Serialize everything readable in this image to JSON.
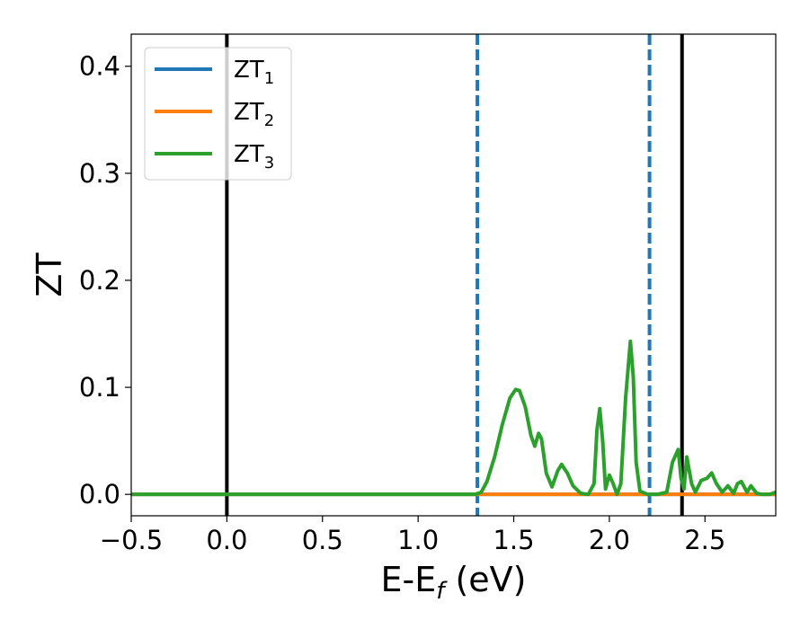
{
  "chart_data": {
    "type": "line",
    "title": "",
    "xlabel": "E-E",
    "xlabel_subscript": "f",
    "xlabel_unit": " (eV)",
    "ylabel": "ZT",
    "xlim": [
      -0.5,
      2.87
    ],
    "ylim": [
      -0.02,
      0.43
    ],
    "x_ticks": [
      -0.5,
      0.0,
      0.5,
      1.0,
      1.5,
      2.0,
      2.5
    ],
    "x_tick_labels": [
      "−0.5",
      "0.0",
      "0.5",
      "1.0",
      "1.5",
      "2.0",
      "2.5"
    ],
    "y_ticks": [
      0.0,
      0.1,
      0.2,
      0.3,
      0.4
    ],
    "y_tick_labels": [
      "0.0",
      "0.1",
      "0.2",
      "0.3",
      "0.4"
    ],
    "grid": false,
    "legend_position": "top-left",
    "vlines": [
      {
        "x": 0.0,
        "color": "#000000",
        "style": "solid"
      },
      {
        "x": 2.38,
        "color": "#000000",
        "style": "solid"
      },
      {
        "x": 1.31,
        "color": "#1f77b4",
        "style": "dashed"
      },
      {
        "x": 2.21,
        "color": "#1f77b4",
        "style": "dashed"
      }
    ],
    "series": [
      {
        "name": "ZT",
        "name_subscript": "1",
        "color": "#1f77b4",
        "x": [
          -0.5,
          0.0,
          0.5,
          1.0,
          1.31,
          1.5,
          2.0,
          2.21,
          2.5,
          2.87
        ],
        "y": [
          0,
          0,
          0,
          0,
          0,
          0,
          0,
          0,
          0,
          0
        ]
      },
      {
        "name": "ZT",
        "name_subscript": "2",
        "color": "#ff7f0e",
        "x": [
          -0.5,
          0.0,
          0.5,
          1.0,
          1.31,
          1.5,
          2.0,
          2.21,
          2.5,
          2.87
        ],
        "y": [
          0,
          0,
          0,
          0,
          0,
          0,
          0,
          0,
          0,
          0
        ]
      },
      {
        "name": "ZT",
        "name_subscript": "3",
        "color": "#2ca02c",
        "x": [
          -0.5,
          0.0,
          0.5,
          1.0,
          1.2,
          1.3,
          1.33,
          1.36,
          1.4,
          1.44,
          1.48,
          1.51,
          1.53,
          1.56,
          1.59,
          1.61,
          1.63,
          1.645,
          1.67,
          1.7,
          1.73,
          1.75,
          1.78,
          1.81,
          1.85,
          1.89,
          1.92,
          1.935,
          1.95,
          1.965,
          1.98,
          2.0,
          2.02,
          2.04,
          2.06,
          2.085,
          2.11,
          2.125,
          2.14,
          2.16,
          2.2,
          2.25,
          2.3,
          2.33,
          2.36,
          2.375,
          2.39,
          2.405,
          2.43,
          2.45,
          2.48,
          2.51,
          2.535,
          2.56,
          2.59,
          2.62,
          2.65,
          2.67,
          2.69,
          2.72,
          2.74,
          2.77,
          2.8,
          2.84,
          2.87
        ],
        "y": [
          0,
          0,
          0,
          0,
          0,
          0,
          0.002,
          0.012,
          0.035,
          0.065,
          0.09,
          0.098,
          0.097,
          0.082,
          0.055,
          0.045,
          0.057,
          0.052,
          0.02,
          0.007,
          0.022,
          0.028,
          0.02,
          0.008,
          0.001,
          0,
          0.01,
          0.06,
          0.08,
          0.05,
          0.005,
          0.018,
          0.01,
          0,
          0.01,
          0.09,
          0.143,
          0.11,
          0.03,
          0.003,
          0,
          0,
          0.002,
          0.03,
          0.042,
          0.015,
          0.005,
          0.035,
          0.01,
          0.002,
          0.013,
          0.015,
          0.02,
          0.01,
          0.002,
          0.008,
          0.001,
          0.01,
          0.012,
          0.002,
          0.008,
          0.001,
          0,
          0,
          0.002
        ]
      }
    ]
  }
}
